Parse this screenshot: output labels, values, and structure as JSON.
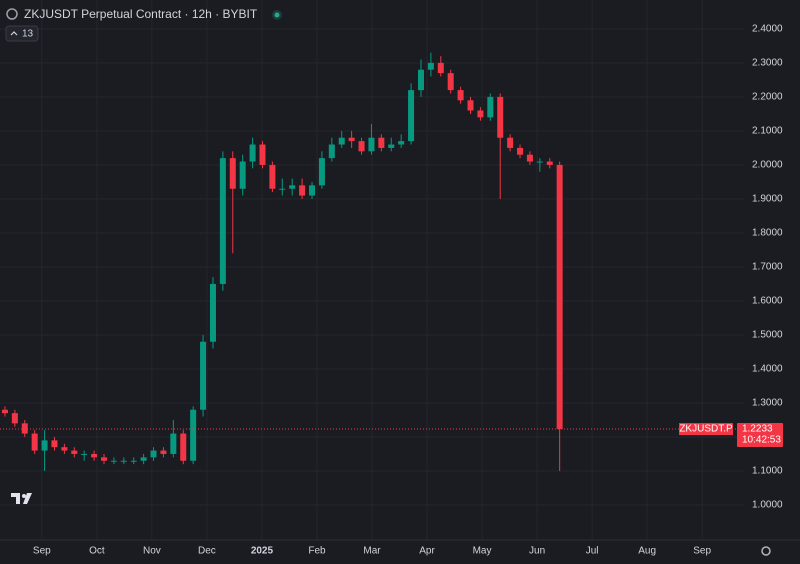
{
  "chart_data": {
    "type": "candlestick",
    "title": "ZKJUSDT Perpetual Contract · 12h · BYBIT",
    "indicator_count": "13",
    "x": [
      -0.67,
      -0.49,
      -0.31,
      -0.13,
      0.05,
      0.23,
      0.41,
      0.59,
      0.77,
      0.95,
      1.13,
      1.31,
      1.49,
      1.67,
      1.85,
      2.03,
      2.21,
      2.39,
      2.57,
      2.75,
      2.93,
      3.11,
      3.29,
      3.47,
      3.65,
      3.83,
      4.01,
      4.19,
      4.37,
      4.55,
      4.73,
      4.91,
      5.09,
      5.27,
      5.45,
      5.63,
      5.81,
      5.99,
      6.17,
      6.35,
      6.53,
      6.71,
      6.89,
      7.07,
      7.25,
      7.43,
      7.61,
      7.79,
      7.97,
      8.15,
      8.33,
      8.51,
      8.69,
      8.87,
      9.05,
      9.23,
      9.41
    ],
    "open": [
      1.28,
      1.27,
      1.24,
      1.21,
      1.16,
      1.19,
      1.17,
      1.16,
      1.15,
      1.15,
      1.14,
      1.13,
      1.13,
      1.13,
      1.13,
      1.14,
      1.16,
      1.15,
      1.21,
      1.13,
      1.28,
      1.48,
      1.65,
      2.02,
      1.93,
      2.01,
      2.06,
      2.0,
      1.93,
      1.93,
      1.94,
      1.91,
      1.94,
      2.02,
      2.06,
      2.08,
      2.07,
      2.04,
      2.08,
      2.05,
      2.06,
      2.07,
      2.22,
      2.28,
      2.3,
      2.27,
      2.22,
      2.19,
      2.16,
      2.14,
      2.2,
      2.08,
      2.05,
      2.03,
      2.01,
      2.01,
      2.0
    ],
    "high": [
      1.29,
      1.28,
      1.25,
      1.22,
      1.22,
      1.2,
      1.18,
      1.17,
      1.16,
      1.16,
      1.15,
      1.14,
      1.14,
      1.14,
      1.15,
      1.17,
      1.17,
      1.25,
      1.22,
      1.29,
      1.5,
      1.67,
      2.04,
      2.04,
      2.03,
      2.08,
      2.07,
      2.01,
      1.96,
      1.96,
      1.96,
      1.95,
      2.04,
      2.08,
      2.1,
      2.1,
      2.08,
      2.12,
      2.09,
      2.08,
      2.09,
      2.24,
      2.31,
      2.33,
      2.32,
      2.28,
      2.23,
      2.2,
      2.17,
      2.21,
      2.21,
      2.09,
      2.06,
      2.04,
      2.02,
      2.02,
      2.01
    ],
    "low": [
      1.26,
      1.23,
      1.2,
      1.15,
      1.1,
      1.16,
      1.15,
      1.14,
      1.13,
      1.13,
      1.12,
      1.12,
      1.12,
      1.12,
      1.12,
      1.13,
      1.14,
      1.14,
      1.12,
      1.12,
      1.26,
      1.46,
      1.63,
      1.74,
      1.91,
      1.99,
      1.99,
      1.92,
      1.91,
      1.91,
      1.9,
      1.9,
      1.93,
      2.01,
      2.05,
      2.05,
      2.03,
      2.03,
      2.04,
      2.04,
      2.05,
      2.06,
      2.2,
      2.26,
      2.26,
      2.21,
      2.18,
      2.15,
      2.13,
      2.13,
      1.9,
      2.04,
      2.02,
      2.0,
      1.98,
      1.99,
      1.1
    ],
    "close": [
      1.27,
      1.24,
      1.21,
      1.16,
      1.19,
      1.17,
      1.16,
      1.15,
      1.15,
      1.14,
      1.13,
      1.13,
      1.13,
      1.13,
      1.14,
      1.16,
      1.15,
      1.21,
      1.13,
      1.28,
      1.48,
      1.65,
      2.02,
      1.93,
      2.01,
      2.06,
      2.0,
      1.93,
      1.93,
      1.94,
      1.91,
      1.94,
      2.02,
      2.06,
      2.08,
      2.07,
      2.04,
      2.08,
      2.05,
      2.06,
      2.07,
      2.22,
      2.28,
      2.3,
      2.27,
      2.22,
      2.19,
      2.16,
      2.14,
      2.2,
      2.08,
      2.05,
      2.03,
      2.01,
      2.01,
      2.0,
      1.2233
    ],
    "up_color": "#089981",
    "down_color": "#f23645",
    "xlim": [
      -0.76,
      12.76
    ],
    "xticks": [
      {
        "value": 0,
        "label": "Sep"
      },
      {
        "value": 1,
        "label": "Oct"
      },
      {
        "value": 2,
        "label": "Nov"
      },
      {
        "value": 3,
        "label": "Dec"
      },
      {
        "value": 4,
        "label": "2025"
      },
      {
        "value": 5,
        "label": "Feb"
      },
      {
        "value": 6,
        "label": "Mar"
      },
      {
        "value": 7,
        "label": "Apr"
      },
      {
        "value": 8,
        "label": "May"
      },
      {
        "value": 9,
        "label": "Jun"
      },
      {
        "value": 10,
        "label": "Jul"
      },
      {
        "value": 11,
        "label": "Aug"
      },
      {
        "value": 12,
        "label": "Sep"
      }
    ],
    "ylim": [
      0.897,
      2.485
    ],
    "yticks": [
      {
        "value": 1.0,
        "label": "1.0000"
      },
      {
        "value": 1.1,
        "label": "1.1000"
      },
      {
        "value": 1.2,
        "label": "1.2000"
      },
      {
        "value": 1.3,
        "label": "1.3000"
      },
      {
        "value": 1.4,
        "label": "1.4000"
      },
      {
        "value": 1.5,
        "label": "1.5000"
      },
      {
        "value": 1.6,
        "label": "1.6000"
      },
      {
        "value": 1.7,
        "label": "1.7000"
      },
      {
        "value": 1.8,
        "label": "1.8000"
      },
      {
        "value": 1.9,
        "label": "1.9000"
      },
      {
        "value": 2.0,
        "label": "2.0000"
      },
      {
        "value": 2.1,
        "label": "2.1000"
      },
      {
        "value": 2.2,
        "label": "2.2000"
      },
      {
        "value": 2.3,
        "label": "2.3000"
      },
      {
        "value": 2.4,
        "label": "2.4000"
      }
    ],
    "grid": true,
    "last_price": {
      "symbol": "ZKJUSDT.P",
      "value": 1.2233,
      "countdown": "10:42:53"
    }
  }
}
